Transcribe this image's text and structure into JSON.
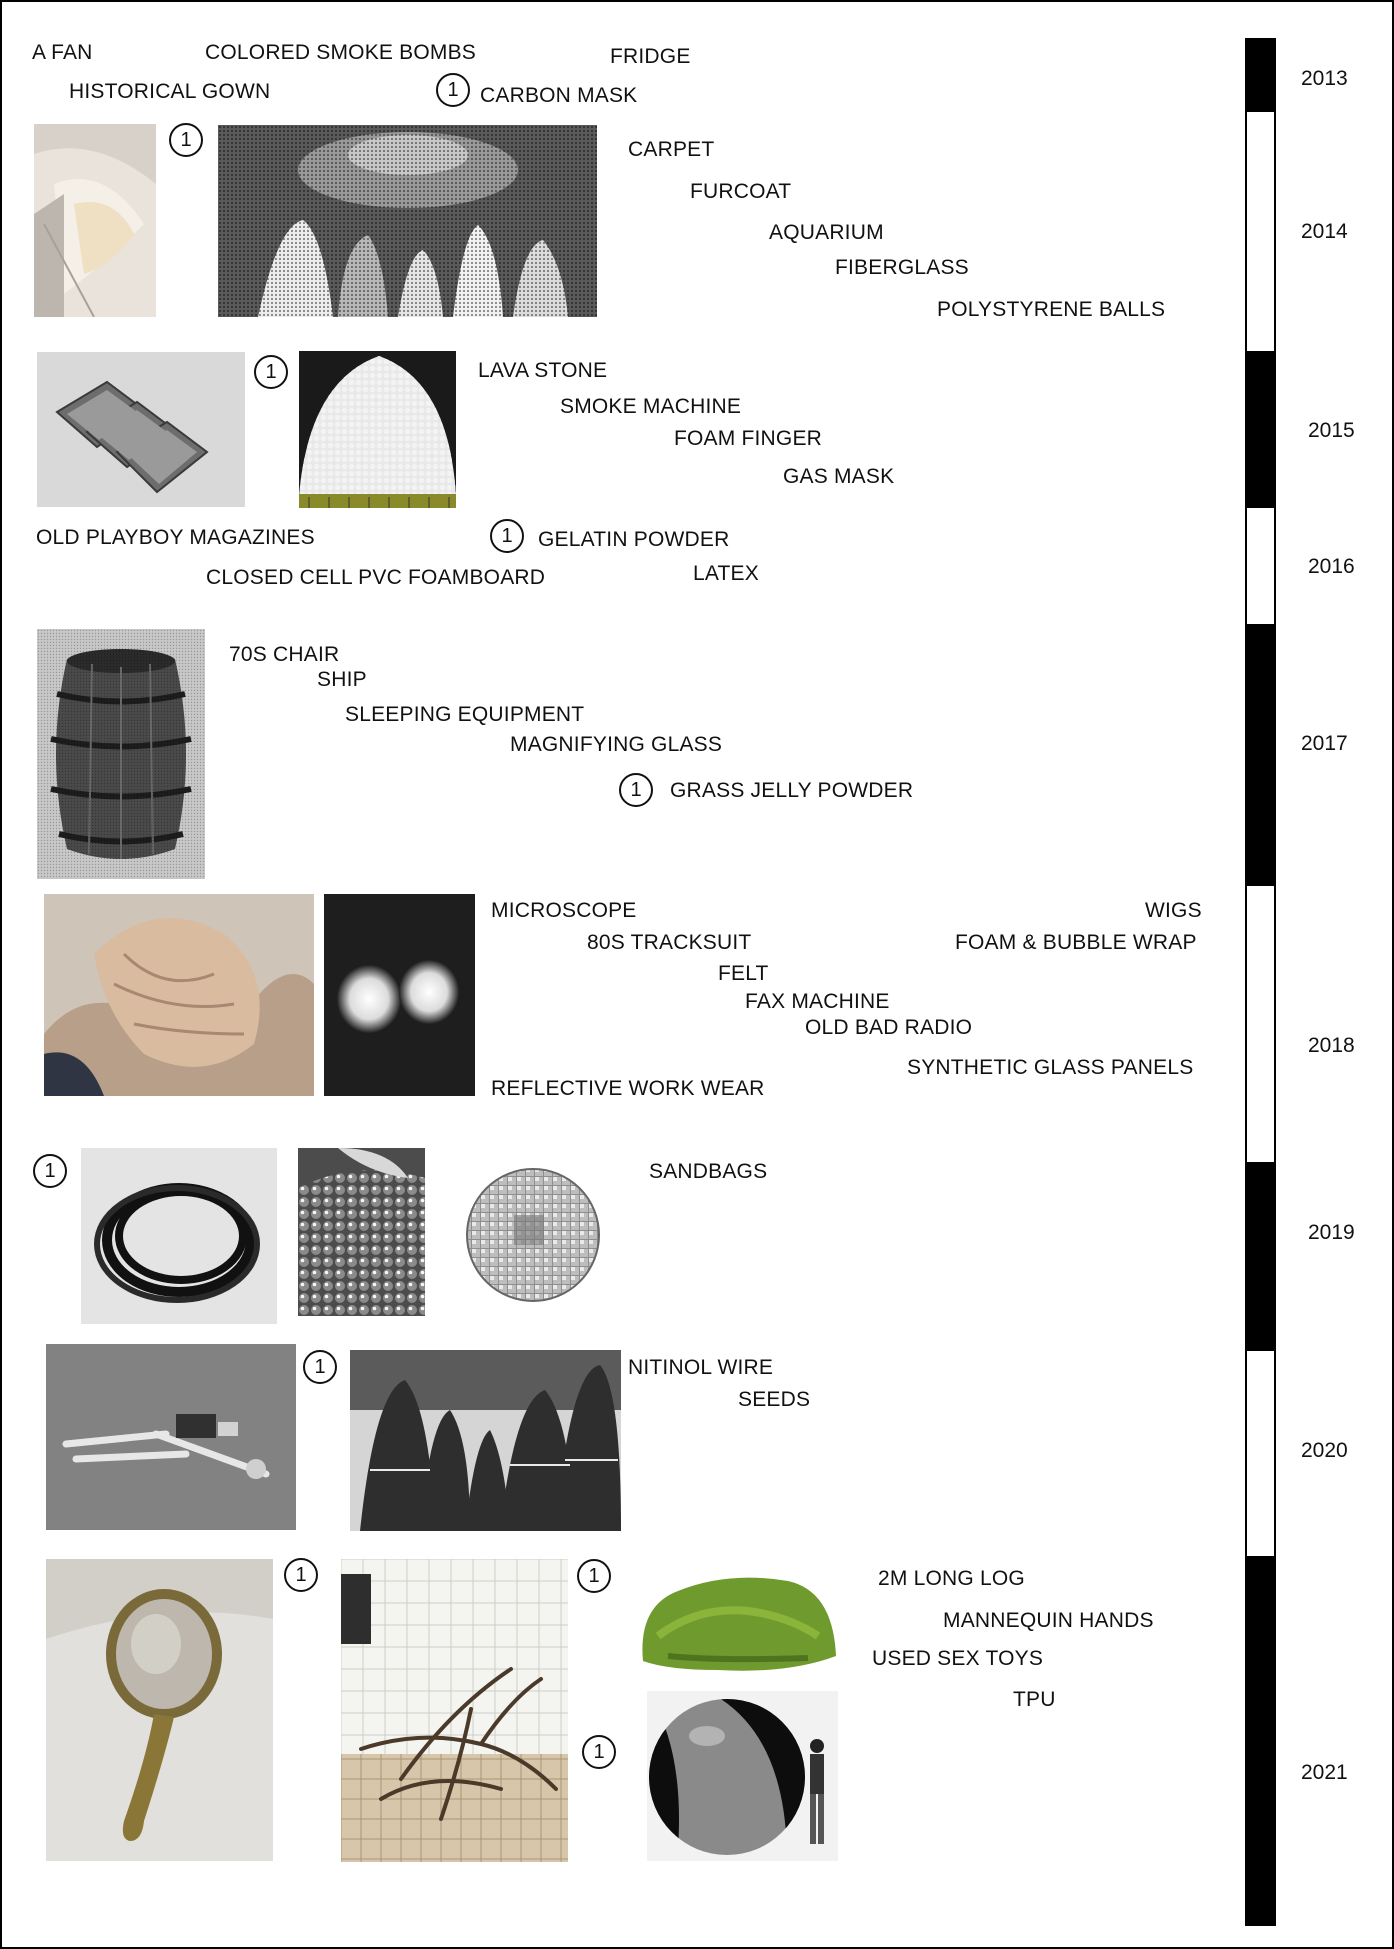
{
  "labels": {
    "a_fan": "A FAN",
    "colored_smoke_bombs": "COLORED SMOKE BOMBS",
    "fridge": "FRIDGE",
    "historical_gown": "HISTORICAL GOWN",
    "carbon_mask": "CARBON MASK",
    "carpet": "CARPET",
    "furcoat": "FURCOAT",
    "aquarium": "AQUARIUM",
    "fiberglass": "FIBERGLASS",
    "polystyrene_balls": "POLYSTYRENE BALLS",
    "lava_stone": "LAVA STONE",
    "smoke_machine": "SMOKE MACHINE",
    "foam_finger": "FOAM FINGER",
    "gas_mask": "GAS MASK",
    "old_playboy_magazines": "OLD PLAYBOY MAGAZINES",
    "gelatin_powder": "GELATIN POWDER",
    "closed_cell_pvc_foamboard": "CLOSED CELL PVC FOAMBOARD",
    "latex": "LATEX",
    "seventies_chair": "70S CHAIR",
    "ship": "SHIP",
    "sleeping_equipment": "SLEEPING EQUIPMENT",
    "magnifying_glass": "MAGNIFYING GLASS",
    "grass_jelly_powder": "GRASS JELLY POWDER",
    "microscope": "MICROSCOPE",
    "wigs": "WIGS",
    "eighties_tracksuit": "80S TRACKSUIT",
    "foam_bubble_wrap": "FOAM & BUBBLE WRAP",
    "felt": "FELT",
    "fax_machine": "FAX MACHINE",
    "old_bad_radio": "OLD BAD RADIO",
    "synthetic_glass_panels": "SYNTHETIC GLASS PANELS",
    "reflective_work_wear": "REFLECTIVE WORK WEAR",
    "sandbags": "SANDBAGS",
    "nitinol_wire": "NITINOL WIRE",
    "seeds": "SEEDS",
    "two_m_long_log": "2M LONG LOG",
    "mannequin_hands": "MANNEQUIN HANDS",
    "used_sex_toys": "USED SEX TOYS",
    "tpu": "TPU"
  },
  "marker_text": "1",
  "years": [
    "2013",
    "2014",
    "2015",
    "2016",
    "2017",
    "2018",
    "2019",
    "2020",
    "2021"
  ],
  "timeline_colors": {
    "dark": "#000000",
    "light": "#ffffff"
  }
}
